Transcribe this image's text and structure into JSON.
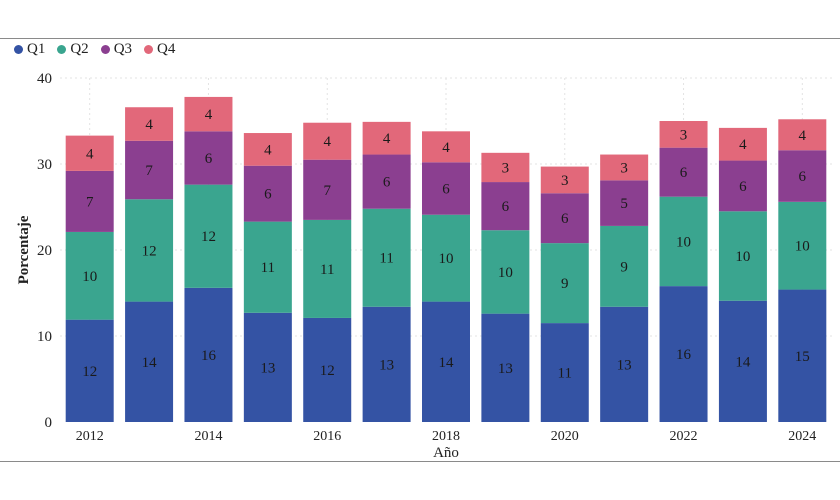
{
  "chart_data": {
    "type": "bar",
    "stacked": true,
    "title": "",
    "xlabel": "Año",
    "ylabel": "Porcentaje",
    "ylim": [
      0,
      40
    ],
    "yticks": [
      "0",
      "10",
      "20",
      "30",
      "40"
    ],
    "categories": [
      "2012",
      "2013",
      "2014",
      "2015",
      "2016",
      "2017",
      "2018",
      "2019",
      "2020",
      "2021",
      "2022",
      "2023",
      "2024"
    ],
    "xtick_labels": [
      "2012",
      "",
      "2014",
      "",
      "2016",
      "",
      "2018",
      "",
      "2020",
      "",
      "2022",
      "",
      "2024"
    ],
    "legend_position": "top-left",
    "series": [
      {
        "name": "Q1",
        "color": "#3453a4",
        "values": [
          11.9,
          14.0,
          15.6,
          12.7,
          12.1,
          13.4,
          14.0,
          12.6,
          11.5,
          13.4,
          15.8,
          14.1,
          15.4
        ],
        "labels": [
          "12",
          "14",
          "16",
          "13",
          "12",
          "13",
          "14",
          "13",
          "11",
          "13",
          "16",
          "14",
          "15"
        ]
      },
      {
        "name": "Q2",
        "color": "#3aa58f",
        "values": [
          10.2,
          11.9,
          12.0,
          10.6,
          11.4,
          11.4,
          10.1,
          9.7,
          9.3,
          9.4,
          10.4,
          10.4,
          10.2
        ],
        "labels": [
          "10",
          "12",
          "12",
          "11",
          "11",
          "11",
          "10",
          "10",
          "9",
          "9",
          "10",
          "10",
          "10"
        ]
      },
      {
        "name": "Q3",
        "color": "#8b3f90",
        "values": [
          7.1,
          6.8,
          6.2,
          6.5,
          7.0,
          6.3,
          6.1,
          5.6,
          5.8,
          5.3,
          5.7,
          5.9,
          6.0
        ],
        "labels": [
          "7",
          "7",
          "6",
          "6",
          "7",
          "6",
          "6",
          "6",
          "6",
          "5",
          "6",
          "6",
          "6"
        ]
      },
      {
        "name": "Q4",
        "color": "#e2687a",
        "values": [
          4.1,
          3.9,
          4.0,
          3.8,
          4.3,
          3.8,
          3.6,
          3.4,
          3.1,
          3.0,
          3.1,
          3.8,
          3.6
        ],
        "labels": [
          "4",
          "4",
          "4",
          "4",
          "4",
          "4",
          "4",
          "3",
          "3",
          "3",
          "3",
          "4",
          "4"
        ]
      }
    ]
  }
}
